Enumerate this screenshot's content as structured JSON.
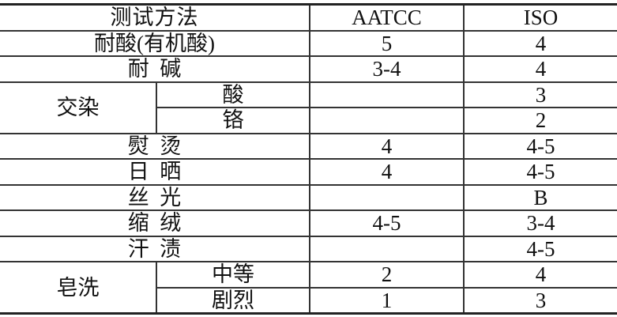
{
  "header": {
    "method": "测试方法",
    "aatcc": "AATCC",
    "iso": "ISO"
  },
  "rows": [
    {
      "method": "耐酸(有机酸)",
      "aatcc": "5",
      "iso": "4"
    },
    {
      "method": "耐  碱",
      "aatcc": "3-4",
      "iso": "4"
    },
    {
      "group": "交染",
      "sub": "酸",
      "aatcc": "",
      "iso": "3"
    },
    {
      "sub": "铬",
      "aatcc": "",
      "iso": "2"
    },
    {
      "method": "熨  烫",
      "aatcc": "4",
      "iso": "4-5"
    },
    {
      "method": "日  晒",
      "aatcc": "4",
      "iso": "4-5"
    },
    {
      "method": "丝  光",
      "aatcc": "",
      "iso": "B"
    },
    {
      "method": "缩  绒",
      "aatcc": "4-5",
      "iso": "3-4"
    },
    {
      "method": "汗  渍",
      "aatcc": "",
      "iso": "4-5"
    },
    {
      "group": "皂洗",
      "sub": "中等",
      "aatcc": "2",
      "iso": "4"
    },
    {
      "sub": "剧烈",
      "aatcc": "1",
      "iso": "3"
    }
  ]
}
